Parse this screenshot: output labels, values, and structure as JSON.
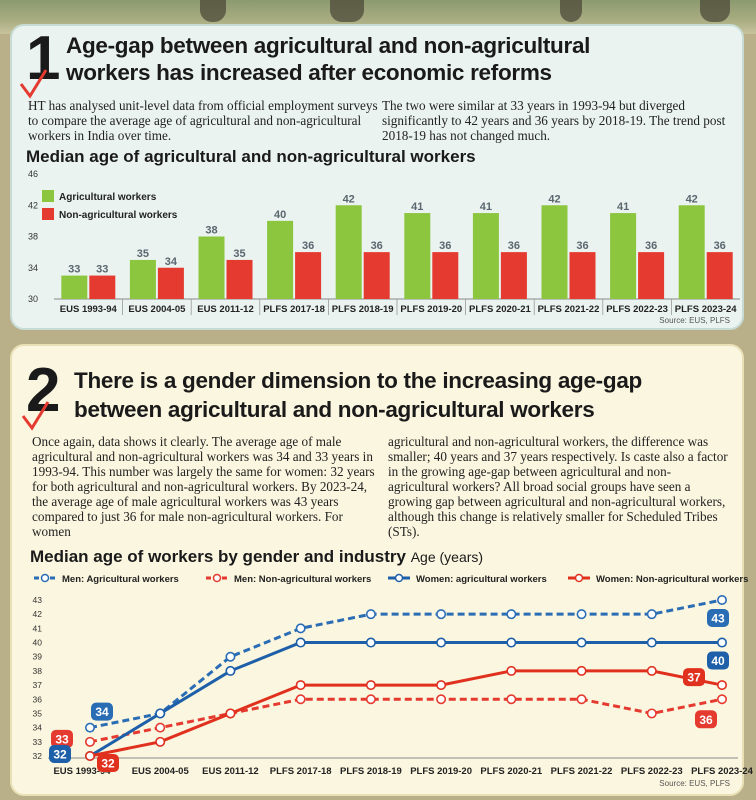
{
  "colors": {
    "agri_green": "#8cc63f",
    "nonagri_red": "#e53a2f",
    "men_line_blue": "#2a6db5",
    "women_line_blue": "#1d5fa8",
    "men_nonagri_red": "#e53a2f",
    "women_nonagri_red": "#e0301e"
  },
  "panel1": {
    "number": "1",
    "headline_line1": "Age-gap between agricultural and non-agricultural",
    "headline_line2": "workers has increased after economic reforms",
    "text_left": "HT has analysed unit-level data from official employment surveys to compare the average age of agricultural and non-agricultural workers in India over time.",
    "text_right": "The two were similar at 33 years in 1993-94 but diverged significantly to 42 years and 36 years by 2018-19. The trend post 2018-19 has not changed much.",
    "chart_title": "Median age of agricultural and non-agricultural workers",
    "source": "Source: EUS, PLFS"
  },
  "panel2": {
    "number": "2",
    "headline_line1": "There is a gender dimension to the increasing age-gap",
    "headline_line2": "between agricultural and non-agricultural workers",
    "text_left": "Once again, data shows it clearly. The average age of male agricultural and non-agricultural workers was 34 and 33 years in 1993-94. This number was largely the same for women: 32 years for both agricultural and non-agricultural workers. By 2023-24, the average age of male agricultural workers was 43 years compared to just 36 for male non-agricultural workers. For women",
    "text_right": "agricultural and non-agricultural workers, the difference was smaller; 40 years and 37 years respectively. Is caste also a factor in the growing age-gap between agricultural and non-agricultural workers? All broad social groups have seen a growing gap between agricultural and non-agricultural workers, although this change is relatively smaller for Scheduled Tribes (STs).",
    "chart_title": "Median age of workers by gender and industry",
    "chart_subtitle": "Age (years)",
    "source": "Source: EUS, PLFS"
  },
  "chart_data": [
    {
      "type": "bar",
      "title": "Median age of agricultural and non-agricultural workers",
      "categories": [
        "EUS 1993-94",
        "EUS 2004-05",
        "EUS 2011-12",
        "PLFS 2017-18",
        "PLFS 2018-19",
        "PLFS 2019-20",
        "PLFS 2020-21",
        "PLFS 2021-22",
        "PLFS 2022-23",
        "PLFS 2023-24"
      ],
      "series": [
        {
          "name": "Agricultural workers",
          "color": "#8cc63f",
          "values": [
            33,
            35,
            38,
            40,
            42,
            41,
            41,
            42,
            41,
            42
          ]
        },
        {
          "name": "Non-agricultural workers",
          "color": "#e53a2f",
          "values": [
            33,
            34,
            35,
            36,
            36,
            36,
            36,
            36,
            36,
            36
          ]
        }
      ],
      "yticks": [
        30,
        34,
        38,
        42,
        46
      ],
      "ylim": [
        30,
        46
      ],
      "legend": "top-left",
      "grid": false
    },
    {
      "type": "line",
      "title": "Median age of workers by gender and industry",
      "ylabel": "Age (years)",
      "categories": [
        "EUS 1993-94",
        "EUS 2004-05",
        "EUS 2011-12",
        "PLFS 2017-18",
        "PLFS 2018-19",
        "PLFS 2019-20",
        "PLFS 2020-21",
        "PLFS 2021-22",
        "PLFS 2022-23",
        "PLFS 2023-24"
      ],
      "series": [
        {
          "name": "Men: Agricultural workers",
          "color": "#2a6db5",
          "dashed": true,
          "values": [
            34,
            35,
            39,
            41,
            42,
            42,
            42,
            42,
            42,
            43
          ]
        },
        {
          "name": "Men: Non-agricultural workers",
          "color": "#e53a2f",
          "dashed": true,
          "values": [
            33,
            34,
            35,
            36,
            36,
            36,
            36,
            36,
            35,
            36
          ]
        },
        {
          "name": "Women: agricultural workers",
          "color": "#1d5fa8",
          "dashed": false,
          "values": [
            32,
            35,
            38,
            40,
            40,
            40,
            40,
            40,
            40,
            40
          ]
        },
        {
          "name": "Women: Non-agricultural workers",
          "color": "#e0301e",
          "dashed": false,
          "values": [
            32,
            33,
            35,
            37,
            37,
            37,
            38,
            38,
            38,
            37
          ]
        }
      ],
      "yticks": [
        32,
        33,
        34,
        35,
        36,
        37,
        38,
        39,
        40,
        41,
        42,
        43
      ],
      "ylim": [
        32,
        43
      ],
      "start_labels": [
        {
          "series": 0,
          "text": "34"
        },
        {
          "series": 1,
          "text": "33"
        },
        {
          "series": 2,
          "text": "32"
        },
        {
          "series": 3,
          "text": "32"
        }
      ],
      "end_labels": [
        {
          "series": 0,
          "text": "43"
        },
        {
          "series": 1,
          "text": "36"
        },
        {
          "series": 2,
          "text": "40"
        },
        {
          "series": 3,
          "text": "37"
        }
      ],
      "legend": "top",
      "grid": false
    }
  ]
}
